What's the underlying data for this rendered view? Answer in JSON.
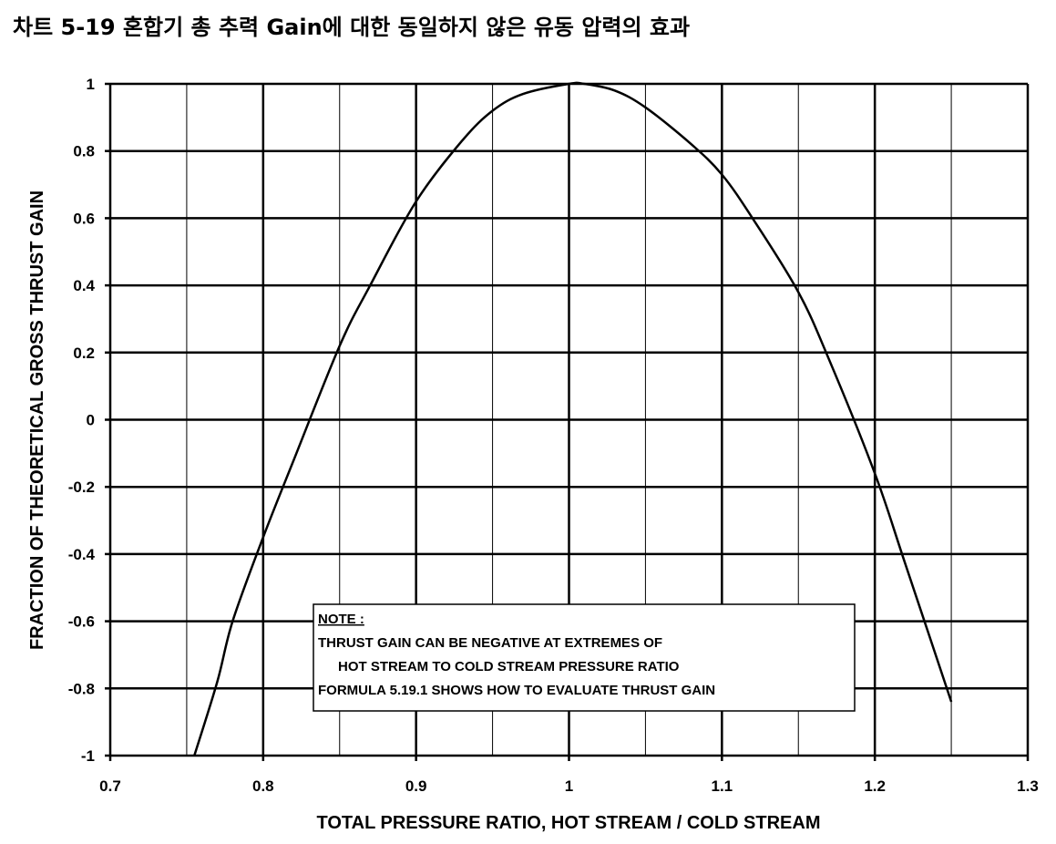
{
  "page_title": "차트 5-19 혼합기 총 추력 Gain에 대한 동일하지 않은 유동 압력의 효과",
  "chart_data": {
    "type": "line",
    "title": "차트 5-19 혼합기 총 추력 Gain에 대한 동일하지 않은 유동 압력의 효과",
    "xlabel": "TOTAL PRESSURE RATIO, HOT STREAM / COLD STREAM",
    "ylabel": "FRACTION OF THEORETICAL GROSS THRUST GAIN",
    "xlim": [
      0.7,
      1.3
    ],
    "ylim": [
      -1,
      1
    ],
    "x_ticks": [
      "0.7",
      "0.8",
      "0.9",
      "1",
      "1.1",
      "1.2",
      "1.3"
    ],
    "y_ticks": [
      "1",
      "0.8",
      "0.6",
      "0.4",
      "0.2",
      "0",
      "-0.2",
      "-0.4",
      "-0.6",
      "-0.8",
      "-1"
    ],
    "grid": true,
    "series": [
      {
        "x": [
          0.755,
          0.77,
          0.78,
          0.8,
          0.82,
          0.85,
          0.87,
          0.9,
          0.93,
          0.95,
          0.97,
          1.0,
          1.01,
          1.03,
          1.05,
          1.08,
          1.1,
          1.12,
          1.15,
          1.17,
          1.2,
          1.22,
          1.25
        ],
        "values": [
          -1.0,
          -0.78,
          -0.6,
          -0.35,
          -0.12,
          0.22,
          0.4,
          0.65,
          0.83,
          0.92,
          0.97,
          1.0,
          1.0,
          0.98,
          0.93,
          0.82,
          0.73,
          0.6,
          0.38,
          0.18,
          -0.16,
          -0.43,
          -0.84
        ]
      }
    ],
    "note": {
      "heading": "NOTE :",
      "lines": [
        "THRUST GAIN CAN BE NEGATIVE AT EXTREMES OF",
        "HOT STREAM TO COLD STREAM PRESSURE RATIO",
        "FORMULA 5.19.1 SHOWS HOW TO EVALUATE THRUST GAIN"
      ]
    }
  }
}
